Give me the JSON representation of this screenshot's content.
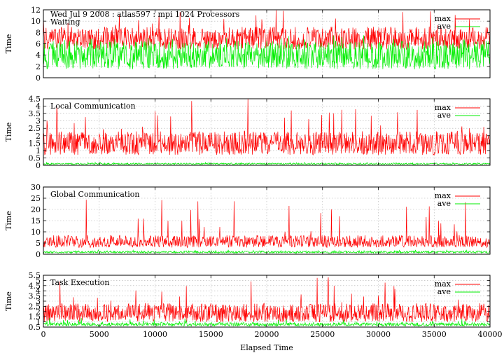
{
  "chart_data": [
    {
      "type": "line",
      "title": "Wed Jul 9 2008 : atlas597 : mpi 1024 Processors",
      "annotation": "Waiting",
      "ylabel": "Time",
      "xlabel": "",
      "xlim": [
        0,
        40000
      ],
      "ylim": [
        0,
        12
      ],
      "yticks": [
        "0",
        "2",
        "4",
        "6",
        "8",
        "10",
        "12"
      ],
      "grid": true,
      "legend_position": "top-right",
      "series": [
        {
          "name": "max",
          "color": "#ff0000",
          "approx_level": [
            5.0,
            9.0
          ],
          "approx_peak": 12.0
        },
        {
          "name": "ave",
          "color": "#00ee00",
          "approx_level": [
            1.5,
            6.5
          ],
          "approx_peak": 7.5
        }
      ]
    },
    {
      "type": "line",
      "title": "",
      "annotation": "Local Communication",
      "ylabel": "Time",
      "xlabel": "",
      "xlim": [
        0,
        40000
      ],
      "ylim": [
        0,
        4.5
      ],
      "yticks": [
        "0",
        "0.5",
        "1",
        "1.5",
        "2",
        "2.5",
        "3",
        "3.5",
        "4",
        "4.5"
      ],
      "grid": true,
      "legend_position": "top-right",
      "series": [
        {
          "name": "max",
          "color": "#ff0000",
          "approx_level": [
            0.7,
            2.3
          ],
          "approx_peak": 4.5
        },
        {
          "name": "ave",
          "color": "#00ee00",
          "approx_level": [
            0.05,
            0.15
          ],
          "approx_peak": 0.2
        }
      ]
    },
    {
      "type": "line",
      "title": "",
      "annotation": "Global Communication",
      "ylabel": "Time",
      "xlabel": "",
      "xlim": [
        0,
        40000
      ],
      "ylim": [
        0,
        30
      ],
      "yticks": [
        "0",
        "5",
        "10",
        "15",
        "20",
        "25",
        "30"
      ],
      "grid": true,
      "legend_position": "top-right",
      "series": [
        {
          "name": "max",
          "color": "#ff0000",
          "approx_level": [
            3.0,
            8.5
          ],
          "approx_peak": 25.0
        },
        {
          "name": "ave",
          "color": "#00ee00",
          "approx_level": [
            0.5,
            1.5
          ],
          "approx_peak": 2.0
        }
      ]
    },
    {
      "type": "line",
      "title": "",
      "annotation": "Task Execution",
      "ylabel": "Time",
      "xlabel": "Elapsed Time",
      "xlim": [
        0,
        40000
      ],
      "ylim": [
        0.5,
        5.5
      ],
      "xticks": [
        "0",
        "5000",
        "10000",
        "15000",
        "20000",
        "25000",
        "30000",
        "35000",
        "40000"
      ],
      "yticks": [
        "0.5",
        "1",
        "1.5",
        "2",
        "2.5",
        "3",
        "3.5",
        "4",
        "4.5",
        "5",
        "5.5"
      ],
      "grid": true,
      "legend_position": "top-right",
      "series": [
        {
          "name": "max",
          "color": "#ff0000",
          "approx_level": [
            1.0,
            2.8
          ],
          "approx_peak": 5.3
        },
        {
          "name": "ave",
          "color": "#00ee00",
          "approx_level": [
            0.6,
            0.95
          ],
          "approx_peak": 1.4
        }
      ]
    }
  ]
}
